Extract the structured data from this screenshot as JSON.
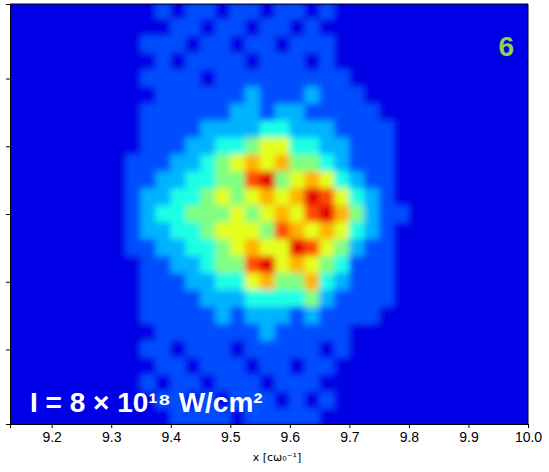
{
  "chart_data": {
    "type": "heatmap",
    "xlabel": "x [cω₀⁻¹]",
    "x": [
      9.1375,
      9.1625,
      9.1875,
      9.2125,
      9.2375,
      9.2625,
      9.2875,
      9.3125,
      9.3375,
      9.3625,
      9.3875,
      9.4125,
      9.4375,
      9.4625,
      9.4875,
      9.5125,
      9.5375,
      9.5625,
      9.5875,
      9.6125,
      9.6375,
      9.6625,
      9.6875,
      9.7125,
      9.7375,
      9.7625,
      9.7875,
      9.8125,
      9.8375,
      9.8625,
      9.8875,
      9.9125,
      9.9375,
      9.9625,
      9.9875
    ],
    "y": [
      3.0,
      2.75,
      2.5,
      2.25,
      2.0,
      1.75,
      1.5,
      1.25,
      1.0,
      0.75,
      0.5,
      0.25,
      0.0,
      -0.25,
      -0.5,
      -0.75,
      -1.0,
      -1.25,
      -1.5,
      -1.75,
      -2.0,
      -2.25,
      -2.5,
      -2.75,
      -3.0
    ],
    "cells": [
      [
        1,
        1,
        1,
        1,
        1,
        1,
        1,
        1,
        1,
        1,
        2,
        1,
        2,
        2,
        1,
        2,
        2,
        1,
        2,
        2,
        1,
        2,
        1,
        1,
        1,
        1,
        1,
        1,
        1,
        1,
        1,
        1,
        1,
        1,
        1
      ],
      [
        1,
        1,
        1,
        1,
        1,
        1,
        1,
        1,
        1,
        1,
        1,
        2,
        2,
        1,
        2,
        2,
        1,
        2,
        2,
        1,
        2,
        1,
        1,
        1,
        1,
        1,
        1,
        1,
        1,
        1,
        1,
        1,
        1,
        1,
        1
      ],
      [
        1,
        1,
        1,
        1,
        1,
        1,
        1,
        1,
        1,
        2,
        2,
        2,
        1,
        2,
        2,
        1,
        2,
        2,
        1,
        2,
        2,
        2,
        1,
        1,
        1,
        1,
        1,
        1,
        1,
        1,
        1,
        1,
        1,
        1,
        1
      ],
      [
        1,
        1,
        1,
        1,
        1,
        1,
        1,
        1,
        1,
        1,
        2,
        1,
        2,
        2,
        2,
        2,
        1,
        2,
        2,
        2,
        1,
        2,
        1,
        1,
        1,
        1,
        1,
        1,
        1,
        1,
        1,
        1,
        1,
        1,
        1
      ],
      [
        1,
        1,
        1,
        1,
        1,
        1,
        1,
        1,
        1,
        2,
        2,
        2,
        2,
        1,
        2,
        2,
        2,
        2,
        2,
        2,
        2,
        2,
        2,
        1,
        1,
        1,
        1,
        1,
        1,
        1,
        1,
        1,
        1,
        1,
        1
      ],
      [
        1,
        1,
        1,
        1,
        1,
        1,
        1,
        1,
        1,
        1,
        2,
        2,
        2,
        2,
        2,
        2,
        3,
        2,
        2,
        2,
        3,
        2,
        2,
        2,
        1,
        1,
        1,
        1,
        1,
        1,
        1,
        1,
        1,
        1,
        1
      ],
      [
        1,
        1,
        1,
        1,
        1,
        1,
        1,
        1,
        1,
        2,
        2,
        2,
        2,
        2,
        2,
        3,
        3,
        2,
        3,
        3,
        2,
        2,
        2,
        2,
        2,
        1,
        1,
        1,
        1,
        1,
        1,
        1,
        1,
        1,
        1
      ],
      [
        1,
        1,
        1,
        1,
        1,
        1,
        1,
        1,
        1,
        2,
        2,
        2,
        2,
        3,
        3,
        3,
        3,
        4,
        4,
        3,
        3,
        3,
        2,
        2,
        2,
        2,
        1,
        1,
        1,
        1,
        1,
        1,
        1,
        1,
        1
      ],
      [
        1,
        1,
        1,
        1,
        1,
        1,
        1,
        1,
        1,
        2,
        2,
        2,
        3,
        3,
        4,
        4,
        5,
        6,
        6,
        4,
        4,
        3,
        3,
        2,
        2,
        2,
        1,
        1,
        1,
        1,
        1,
        1,
        1,
        1,
        1
      ],
      [
        1,
        1,
        1,
        1,
        1,
        1,
        1,
        1,
        2,
        2,
        2,
        3,
        3,
        4,
        5,
        6,
        7,
        6,
        7,
        5,
        5,
        4,
        3,
        2,
        2,
        2,
        1,
        1,
        1,
        1,
        1,
        1,
        1,
        1,
        1
      ],
      [
        1,
        1,
        1,
        1,
        1,
        1,
        1,
        1,
        2,
        2,
        3,
        3,
        4,
        4,
        5,
        5,
        8,
        9,
        5,
        6,
        7,
        6,
        4,
        3,
        2,
        2,
        1,
        1,
        1,
        1,
        1,
        1,
        1,
        1,
        1
      ],
      [
        1,
        1,
        1,
        1,
        1,
        1,
        1,
        1,
        2,
        3,
        3,
        4,
        4,
        5,
        6,
        5,
        6,
        7,
        6,
        7,
        9,
        8,
        6,
        4,
        3,
        2,
        1,
        1,
        1,
        1,
        1,
        1,
        1,
        1,
        1
      ],
      [
        1,
        1,
        1,
        1,
        1,
        1,
        1,
        1,
        2,
        3,
        4,
        4,
        5,
        5,
        5,
        6,
        5,
        6,
        7,
        6,
        8,
        9,
        7,
        5,
        3,
        2,
        2,
        1,
        1,
        1,
        1,
        1,
        1,
        1,
        1
      ],
      [
        1,
        1,
        1,
        1,
        1,
        1,
        1,
        1,
        2,
        3,
        3,
        4,
        4,
        5,
        6,
        6,
        6,
        5,
        8,
        7,
        6,
        7,
        6,
        4,
        3,
        2,
        1,
        1,
        1,
        1,
        1,
        1,
        1,
        1,
        1
      ],
      [
        1,
        1,
        1,
        1,
        1,
        1,
        1,
        1,
        2,
        2,
        3,
        3,
        4,
        4,
        5,
        6,
        7,
        6,
        6,
        9,
        8,
        6,
        5,
        3,
        2,
        2,
        1,
        1,
        1,
        1,
        1,
        1,
        1,
        1,
        1
      ],
      [
        1,
        1,
        1,
        1,
        1,
        1,
        1,
        1,
        1,
        2,
        2,
        3,
        3,
        4,
        5,
        5,
        8,
        9,
        6,
        7,
        6,
        5,
        4,
        2,
        2,
        2,
        1,
        1,
        1,
        1,
        1,
        1,
        1,
        1,
        1
      ],
      [
        1,
        1,
        1,
        1,
        1,
        1,
        1,
        1,
        1,
        2,
        2,
        2,
        3,
        3,
        4,
        4,
        6,
        7,
        5,
        5,
        7,
        4,
        3,
        2,
        2,
        2,
        1,
        1,
        1,
        1,
        1,
        1,
        1,
        1,
        1
      ],
      [
        1,
        1,
        1,
        1,
        1,
        1,
        1,
        1,
        1,
        2,
        2,
        2,
        2,
        3,
        3,
        3,
        4,
        4,
        4,
        4,
        5,
        3,
        2,
        2,
        2,
        2,
        1,
        1,
        1,
        1,
        1,
        1,
        1,
        1,
        1
      ],
      [
        1,
        1,
        1,
        1,
        1,
        1,
        1,
        1,
        1,
        2,
        2,
        2,
        2,
        2,
        3,
        2,
        3,
        3,
        3,
        2,
        3,
        2,
        2,
        2,
        2,
        1,
        1,
        1,
        1,
        1,
        1,
        1,
        1,
        1,
        1
      ],
      [
        1,
        1,
        1,
        1,
        1,
        1,
        1,
        1,
        1,
        1,
        2,
        2,
        2,
        2,
        2,
        2,
        2,
        3,
        2,
        2,
        2,
        2,
        2,
        1,
        1,
        1,
        1,
        1,
        1,
        1,
        1,
        1,
        1,
        1,
        1
      ],
      [
        1,
        1,
        1,
        1,
        1,
        1,
        1,
        1,
        1,
        2,
        2,
        1,
        2,
        2,
        2,
        1,
        2,
        2,
        2,
        2,
        2,
        1,
        2,
        1,
        1,
        1,
        1,
        1,
        1,
        1,
        1,
        1,
        1,
        1,
        1
      ],
      [
        1,
        1,
        1,
        1,
        1,
        1,
        1,
        1,
        1,
        1,
        2,
        2,
        1,
        2,
        2,
        2,
        1,
        2,
        2,
        1,
        2,
        2,
        1,
        1,
        1,
        1,
        1,
        1,
        1,
        1,
        1,
        1,
        1,
        1,
        1
      ],
      [
        1,
        1,
        1,
        1,
        1,
        1,
        1,
        1,
        1,
        2,
        1,
        2,
        2,
        1,
        2,
        2,
        2,
        1,
        2,
        2,
        2,
        1,
        1,
        1,
        1,
        1,
        1,
        1,
        1,
        1,
        1,
        1,
        1,
        1,
        1
      ],
      [
        1,
        1,
        1,
        1,
        1,
        1,
        1,
        1,
        1,
        1,
        2,
        2,
        1,
        2,
        1,
        2,
        2,
        2,
        1,
        2,
        1,
        2,
        1,
        1,
        1,
        1,
        1,
        1,
        1,
        1,
        1,
        1,
        1,
        1,
        1
      ],
      [
        1,
        1,
        1,
        1,
        1,
        1,
        1,
        1,
        1,
        1,
        1,
        2,
        2,
        2,
        2,
        1,
        2,
        2,
        2,
        2,
        2,
        1,
        1,
        1,
        1,
        1,
        1,
        1,
        1,
        1,
        1,
        1,
        1,
        1,
        1
      ]
    ],
    "color_range": [
      0,
      10
    ],
    "xlim": [
      9.13,
      10.0
    ],
    "ylim": [
      -3.1,
      3.1
    ],
    "xticks": [
      9.2,
      9.3,
      9.4,
      9.5,
      9.6,
      9.7,
      9.8,
      9.9,
      {
        "value": 10.0,
        "label": "10.0"
      }
    ],
    "yticks": [
      -2,
      -1,
      0,
      1,
      2
    ],
    "tick_labels": "x",
    "annotations": [
      {
        "text": "6",
        "color": "#92d050"
      },
      {
        "text": "I = 8 × 10¹⁸ W/cm²",
        "color": "#ffffff"
      }
    ]
  }
}
